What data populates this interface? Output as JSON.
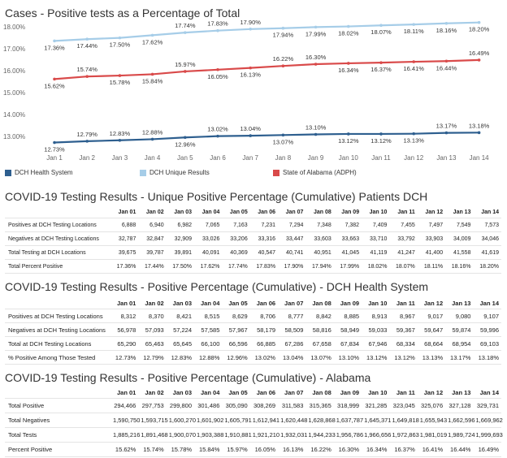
{
  "chart_data": {
    "type": "line",
    "title": "Cases - Positive tests as a Percentage of Total",
    "categories": [
      "Jan 1",
      "Jan 2",
      "Jan 3",
      "Jan 4",
      "Jan 5",
      "Jan 6",
      "Jan 7",
      "Jan 8",
      "Jan 9",
      "Jan 10",
      "Jan 11",
      "Jan 12",
      "Jan 13",
      "Jan 14"
    ],
    "y_ticks": [
      "18.00%",
      "17.00%",
      "16.00%",
      "15.00%",
      "14.00%",
      "13.00%"
    ],
    "ylim": [
      12.6,
      18.3
    ],
    "grid": false,
    "legend_position": "bottom",
    "series": [
      {
        "name": "DCH Health System",
        "color": "#2e5f8f",
        "values": [
          12.73,
          12.79,
          12.83,
          12.88,
          12.96,
          13.02,
          13.04,
          13.07,
          13.1,
          13.12,
          13.12,
          13.13,
          13.17,
          13.18
        ],
        "labels": [
          "12.73%",
          "12.79%",
          "12.83%",
          "12.88%",
          "12.96%",
          "13.02%",
          "13.04%",
          "13.07%",
          "13.10%",
          "13.12%",
          "13.12%",
          "13.13%",
          "13.17%",
          "13.18%"
        ]
      },
      {
        "name": "DCH Unique Results",
        "color": "#a6cde8",
        "values": [
          17.36,
          17.44,
          17.5,
          17.62,
          17.74,
          17.83,
          17.9,
          17.94,
          17.99,
          18.02,
          18.07,
          18.11,
          18.16,
          18.2
        ],
        "labels": [
          "17.36%",
          "17.44%",
          "17.50%",
          "17.62%",
          "17.74%",
          "17.83%",
          "17.90%",
          "17.94%",
          "17.99%",
          "18.02%",
          "18.07%",
          "18.11%",
          "18.16%",
          "18.20%"
        ]
      },
      {
        "name": "State of Alabama (ADPH)",
        "color": "#d94a4a",
        "values": [
          15.62,
          15.74,
          15.78,
          15.84,
          15.97,
          16.05,
          16.13,
          16.22,
          16.3,
          16.34,
          16.37,
          16.41,
          16.44,
          16.49
        ],
        "labels": [
          "15.62%",
          "15.74%",
          "15.78%",
          "15.84%",
          "15.97%",
          "16.05%",
          "16.13%",
          "16.22%",
          "16.30%",
          "16.34%",
          "16.37%",
          "16.41%",
          "16.44%",
          "16.49%"
        ]
      }
    ]
  },
  "tables": [
    {
      "title": "COVID-19 Testing Results - Unique Positive Percentage (Cumulative) Patients DCH",
      "headers": [
        "Jan 01",
        "Jan 02",
        "Jan 03",
        "Jan 04",
        "Jan 05",
        "Jan 06",
        "Jan 07",
        "Jan 08",
        "Jan 09",
        "Jan 10",
        "Jan 11",
        "Jan 12",
        "Jan 13",
        "Jan 14"
      ],
      "rows": [
        {
          "label": "Positives at DCH Testing Locations",
          "cells": [
            "6,888",
            "6,940",
            "6,982",
            "7,065",
            "7,163",
            "7,231",
            "7,294",
            "7,348",
            "7,382",
            "7,409",
            "7,455",
            "7,497",
            "7,549",
            "7,573"
          ]
        },
        {
          "label": "Negatives at DCH Testing Locations",
          "cells": [
            "32,787",
            "32,847",
            "32,909",
            "33,026",
            "33,206",
            "33,316",
            "33,447",
            "33,603",
            "33,663",
            "33,710",
            "33,792",
            "33,903",
            "34,009",
            "34,046"
          ]
        },
        {
          "label": "Total Testing at DCH Locations",
          "cells": [
            "39,675",
            "39,787",
            "39,891",
            "40,091",
            "40,369",
            "40,547",
            "40,741",
            "40,951",
            "41,045",
            "41,119",
            "41,247",
            "41,400",
            "41,558",
            "41,619"
          ]
        },
        {
          "label": "Total Percent Positive",
          "cells": [
            "17.36%",
            "17.44%",
            "17.50%",
            "17.62%",
            "17.74%",
            "17.83%",
            "17.90%",
            "17.94%",
            "17.99%",
            "18.02%",
            "18.07%",
            "18.11%",
            "18.16%",
            "18.20%"
          ]
        }
      ]
    },
    {
      "title": "COVID-19 Testing Results - Positive Percentage (Cumulative) - DCH Health System",
      "headers": [
        "Jan 01",
        "Jan 02",
        "Jan 03",
        "Jan 04",
        "Jan 05",
        "Jan 06",
        "Jan 07",
        "Jan 08",
        "Jan 09",
        "Jan 10",
        "Jan 11",
        "Jan 12",
        "Jan 13",
        "Jan 14"
      ],
      "rows": [
        {
          "label": "Positives at DCH Testing Locations",
          "cells": [
            "8,312",
            "8,370",
            "8,421",
            "8,515",
            "8,629",
            "8,706",
            "8,777",
            "8,842",
            "8,885",
            "8,913",
            "8,967",
            "9,017",
            "9,080",
            "9,107"
          ]
        },
        {
          "label": "Negatives at DCH Testing Locations",
          "cells": [
            "56,978",
            "57,093",
            "57,224",
            "57,585",
            "57,967",
            "58,179",
            "58,509",
            "58,816",
            "58,949",
            "59,033",
            "59,367",
            "59,647",
            "59,874",
            "59,996"
          ]
        },
        {
          "label": "Total at DCH Testing Locations",
          "cells": [
            "65,290",
            "65,463",
            "65,645",
            "66,100",
            "66,596",
            "66,885",
            "67,286",
            "67,658",
            "67,834",
            "67,946",
            "68,334",
            "68,664",
            "68,954",
            "69,103"
          ]
        },
        {
          "label": "% Positive Among Those Tested",
          "cells": [
            "12.73%",
            "12.79%",
            "12.83%",
            "12.88%",
            "12.96%",
            "13.02%",
            "13.04%",
            "13.07%",
            "13.10%",
            "13.12%",
            "13.12%",
            "13.13%",
            "13.17%",
            "13.18%"
          ]
        }
      ]
    },
    {
      "title": "COVID-19 Testing Results - Positive Percentage (Cumulative) - Alabama",
      "headers": [
        "Jan 01",
        "Jan 02",
        "Jan 03",
        "Jan 04",
        "Jan 05",
        "Jan 06",
        "Jan 07",
        "Jan 08",
        "Jan 09",
        "Jan 10",
        "Jan 11",
        "Jan 12",
        "Jan 13",
        "Jan 14"
      ],
      "rows": [
        {
          "label": "Total Positive",
          "cells": [
            "294,466",
            "297,753",
            "299,800",
            "301,486",
            "305,090",
            "308,269",
            "311,583",
            "315,365",
            "318,999",
            "321,285",
            "323,045",
            "325,076",
            "327,128",
            "329,731"
          ]
        },
        {
          "label": "Total Negatives",
          "cells": [
            "1,590,750",
            "1,593,715",
            "1,600,270",
            "1,601,902",
            "1,605,791",
            "1,612,941",
            "1,620,448",
            "1,628,868",
            "1,637,787",
            "1,645,371",
            "1,649,818",
            "1,655,943",
            "1,662,596",
            "1,669,962"
          ]
        },
        {
          "label": "Total Tests",
          "cells": [
            "1,885,216",
            "1,891,468",
            "1,900,070",
            "1,903,388",
            "1,910,881",
            "1,921,210",
            "1,932,031",
            "1,944,233",
            "1,956,786",
            "1,966,656",
            "1,972,863",
            "1,981,019",
            "1,989,724",
            "1,999,693"
          ]
        },
        {
          "label": "Percent Positive",
          "cells": [
            "15.62%",
            "15.74%",
            "15.78%",
            "15.84%",
            "15.97%",
            "16.05%",
            "16.13%",
            "16.22%",
            "16.30%",
            "16.34%",
            "16.37%",
            "16.41%",
            "16.44%",
            "16.49%"
          ]
        }
      ]
    }
  ]
}
